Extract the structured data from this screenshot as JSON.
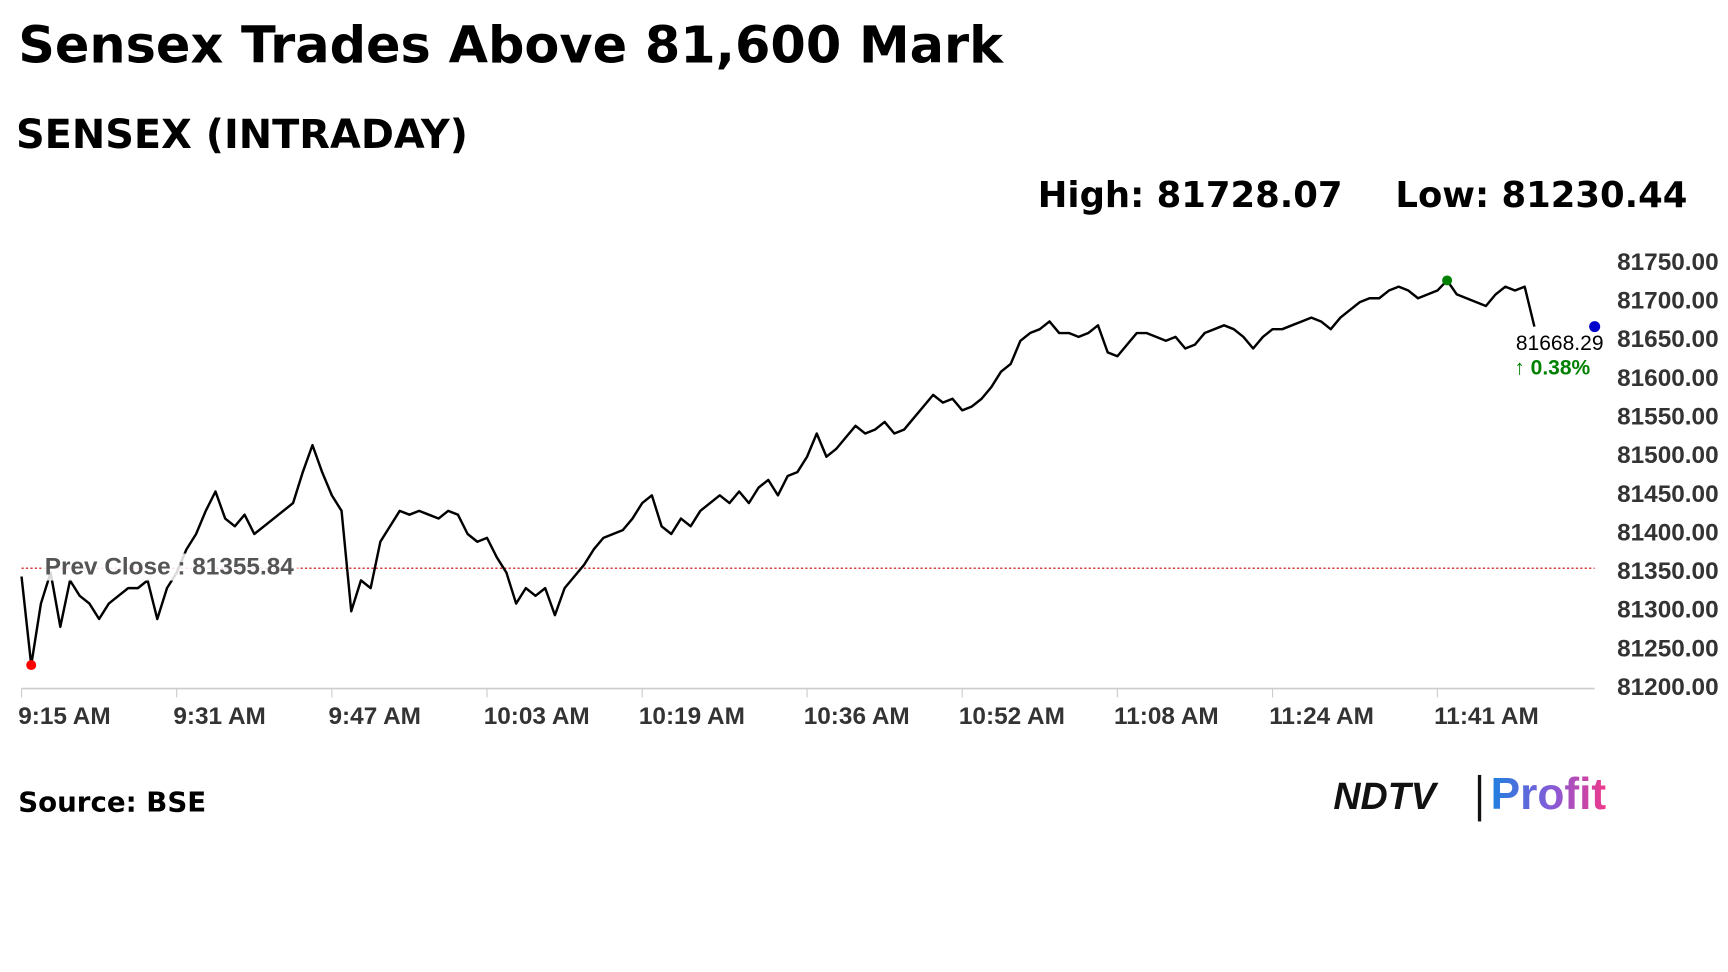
{
  "chart_data": {
    "type": "line",
    "title": "Sensex Trades Above 81,600 Mark",
    "subtitle": "SENSEX (INTRADAY)",
    "high_label": "High: 81728.07",
    "low_label": "Low: 81230.44",
    "source": "Source: BSE",
    "logo": [
      "NDTV",
      "Profit"
    ],
    "prev_close": {
      "value": 81355.84,
      "label": "Prev Close : 81355.84"
    },
    "change_label": "↑ 0.38%",
    "categories": [
      "9:15 AM",
      null,
      null,
      null,
      null,
      null,
      null,
      null,
      null,
      null,
      null,
      null,
      null,
      null,
      null,
      null,
      "9:31 AM",
      null,
      null,
      null,
      null,
      null,
      null,
      null,
      null,
      null,
      null,
      null,
      null,
      null,
      null,
      null,
      "9:47 AM",
      null,
      null,
      null,
      null,
      null,
      null,
      null,
      null,
      null,
      null,
      null,
      null,
      null,
      null,
      null,
      "10:03 AM",
      null,
      null,
      null,
      null,
      null,
      null,
      null,
      null,
      null,
      null,
      null,
      null,
      null,
      null,
      null,
      "10:19 AM",
      null,
      null,
      null,
      null,
      null,
      null,
      null,
      null,
      null,
      null,
      null,
      null,
      null,
      null,
      null,
      null,
      "10:36 AM",
      null,
      null,
      null,
      null,
      null,
      null,
      null,
      null,
      null,
      null,
      null,
      null,
      null,
      null,
      null,
      "10:52 AM",
      null,
      null,
      null,
      null,
      null,
      null,
      null,
      null,
      null,
      null,
      null,
      null,
      null,
      null,
      null,
      "11:08 AM",
      null,
      null,
      null,
      null,
      null,
      null,
      null,
      null,
      null,
      null,
      null,
      null,
      null,
      null,
      null,
      "11:24 AM",
      null,
      null,
      null,
      null,
      null,
      null,
      null,
      null,
      null,
      null,
      null,
      null,
      null,
      null,
      null,
      null,
      "11:41 AM",
      null,
      null,
      null,
      null,
      null,
      null,
      null,
      null,
      null,
      null
    ],
    "series": [
      {
        "name": "SENSEX",
        "color": "#000000",
        "values": [
          81345,
          81230.44,
          81310,
          81350,
          81280,
          81340,
          81320,
          81310,
          81290,
          81310,
          81320,
          81330,
          81330,
          81340,
          81290,
          81330,
          81350,
          81380,
          81400,
          81430,
          81455,
          81420,
          81410,
          81425,
          81400,
          81410,
          81420,
          81430,
          81440,
          81480,
          81515,
          81480,
          81450,
          81430,
          81300,
          81340,
          81330,
          81390,
          81410,
          81430,
          81425,
          81430,
          81425,
          81420,
          81430,
          81425,
          81400,
          81390,
          81395,
          81370,
          81350,
          81310,
          81330,
          81320,
          81330,
          81295,
          81330,
          81345,
          81360,
          81380,
          81395,
          81400,
          81405,
          81420,
          81440,
          81450,
          81410,
          81400,
          81420,
          81410,
          81430,
          81440,
          81450,
          81440,
          81455,
          81440,
          81460,
          81470,
          81450,
          81475,
          81480,
          81500,
          81530,
          81500,
          81510,
          81525,
          81540,
          81530,
          81535,
          81545,
          81530,
          81535,
          81550,
          81565,
          81580,
          81570,
          81575,
          81560,
          81565,
          81575,
          81590,
          81610,
          81620,
          81650,
          81660,
          81665,
          81675,
          81660,
          81660,
          81655,
          81660,
          81670,
          81635,
          81630,
          81645,
          81660,
          81660,
          81655,
          81650,
          81655,
          81640,
          81645,
          81660,
          81665,
          81670,
          81665,
          81655,
          81640,
          81655,
          81665,
          81665,
          81670,
          81675,
          81680,
          81675,
          81665,
          81680,
          81690,
          81700,
          81705,
          81705,
          81715,
          81720,
          81715,
          81705,
          81710,
          81715,
          81728.07,
          81710,
          81705,
          81700,
          81695,
          81710,
          81720,
          81715,
          81720,
          81668.29
        ]
      }
    ],
    "low_color": "#ff0000",
    "high_color": "#008000",
    "last_color": "#0000cc",
    "prev_close_color": "#cc0000",
    "ylim": [
      81200,
      81750
    ],
    "yticks": [
      {
        "value": 81200,
        "label": "81200.00"
      },
      {
        "value": 81250,
        "label": "81250.00"
      },
      {
        "value": 81300,
        "label": "81300.00"
      },
      {
        "value": 81350,
        "label": "81350.00"
      },
      {
        "value": 81400,
        "label": "81400.00"
      },
      {
        "value": 81450,
        "label": "81450.00"
      },
      {
        "value": 81500,
        "label": "81500.00"
      },
      {
        "value": 81550,
        "label": "81550.00"
      },
      {
        "value": 81600,
        "label": "81600.00"
      },
      {
        "value": 81650,
        "label": "81650.00"
      },
      {
        "value": 81700,
        "label": "81700.00"
      },
      {
        "value": 81750,
        "label": "81750.00"
      }
    ],
    "grid": false
  }
}
